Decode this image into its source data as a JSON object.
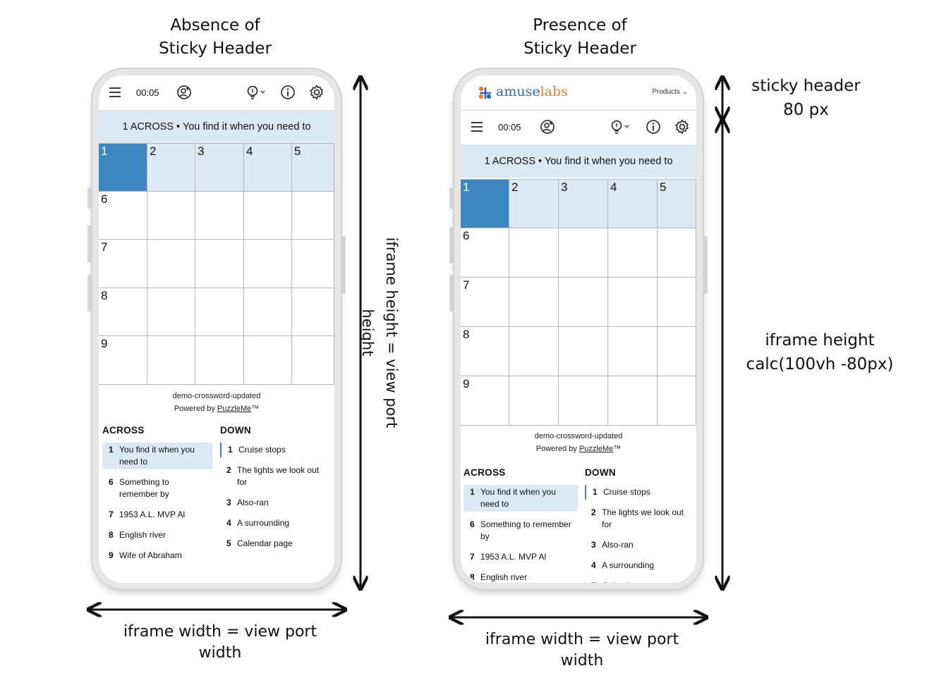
{
  "left": {
    "caption": "Absence of\nSticky Header",
    "side_label": "iframe height = view port height",
    "bottom_label": "iframe width = view port\nwidth"
  },
  "right": {
    "caption": "Presence of\nSticky Header",
    "sticky_label": "sticky header\n80 px",
    "height_label": "iframe height\ncalc(100vh -80px)",
    "bottom_label": "iframe width = view port\nwidth",
    "logo_text_a": "amuse",
    "logo_text_b": "labs",
    "products": "Products ⌄"
  },
  "app": {
    "timer": "00:05",
    "clue_bar": "1 ACROSS • You find it when you need to",
    "cells_row1": [
      "1",
      "2",
      "3",
      "4",
      "5"
    ],
    "row_numbers": [
      "6",
      "7",
      "8",
      "9"
    ],
    "credit_title": "demo-crossword-updated",
    "credit_powered": "Powered by ",
    "credit_link": "PuzzleMe",
    "credit_tm": "™",
    "across_head": "ACROSS",
    "down_head": "DOWN",
    "across": [
      {
        "n": "1",
        "t": "You find it when you need to"
      },
      {
        "n": "6",
        "t": "Something to remember by"
      },
      {
        "n": "7",
        "t": "1953 A.L. MVP Al"
      },
      {
        "n": "8",
        "t": "English river"
      },
      {
        "n": "9",
        "t": "Wife of Abraham"
      }
    ],
    "down": [
      {
        "n": "1",
        "t": "Cruise stops"
      },
      {
        "n": "2",
        "t": "The lights we look out for"
      },
      {
        "n": "3",
        "t": "Also-ran"
      },
      {
        "n": "4",
        "t": "A surrounding"
      },
      {
        "n": "5",
        "t": "Calendar page"
      }
    ]
  },
  "colors": {
    "accent": "#3d86c2",
    "highlight": "#dce8f3"
  }
}
